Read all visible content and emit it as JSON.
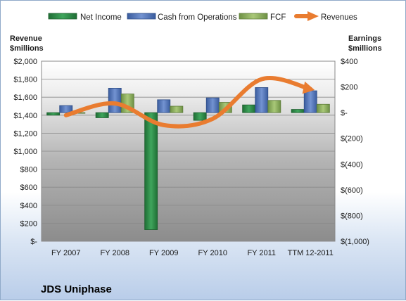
{
  "company": "JDS Uniphase",
  "chart_data": {
    "type": "bar",
    "categories": [
      "FY 2007",
      "FY 2008",
      "FY 2009",
      "FY 2010",
      "FY 2011",
      "TTM 12-2011"
    ],
    "left_axis": {
      "title_line1": "Revenue",
      "title_line2": "$millions",
      "ylim": [
        0,
        2000
      ],
      "ticks": [
        0,
        200,
        400,
        600,
        800,
        1000,
        1200,
        1400,
        1600,
        1800,
        2000
      ],
      "tick_labels": [
        "$-",
        "$200",
        "$400",
        "$600",
        "$800",
        "$1,000",
        "$1,200",
        "$1,400",
        "$1,600",
        "$1,800",
        "$2,000"
      ]
    },
    "right_axis": {
      "title_line1": "Earnings",
      "title_line2": "$millions",
      "ylim": [
        -1000,
        400
      ],
      "ticks": [
        -1000,
        -800,
        -600,
        -400,
        -200,
        0,
        200,
        400
      ],
      "tick_labels": [
        "$(1,000)",
        "$(800)",
        "$(600)",
        "$(400)",
        "$(200)",
        "$-",
        "$200",
        "$400"
      ]
    },
    "series": [
      {
        "name": "Net Income",
        "axis": "right",
        "kind": "bar",
        "color": "#2e8b4a",
        "values": [
          -20,
          -40,
          -910,
          -60,
          60,
          25
        ]
      },
      {
        "name": "Cash from Operations",
        "axis": "right",
        "kind": "bar",
        "color": "#4f73b8",
        "values": [
          55,
          190,
          100,
          115,
          195,
          170
        ]
      },
      {
        "name": "FCF",
        "axis": "right",
        "kind": "bar",
        "color": "#8db15a",
        "values": [
          -5,
          145,
          50,
          80,
          95,
          65
        ]
      },
      {
        "name": "Revenues",
        "axis": "left",
        "kind": "line",
        "color": "#e97c30",
        "values": [
          1400,
          1530,
          1290,
          1360,
          1800,
          1690
        ]
      }
    ],
    "grid": true,
    "legend_position": "top"
  }
}
